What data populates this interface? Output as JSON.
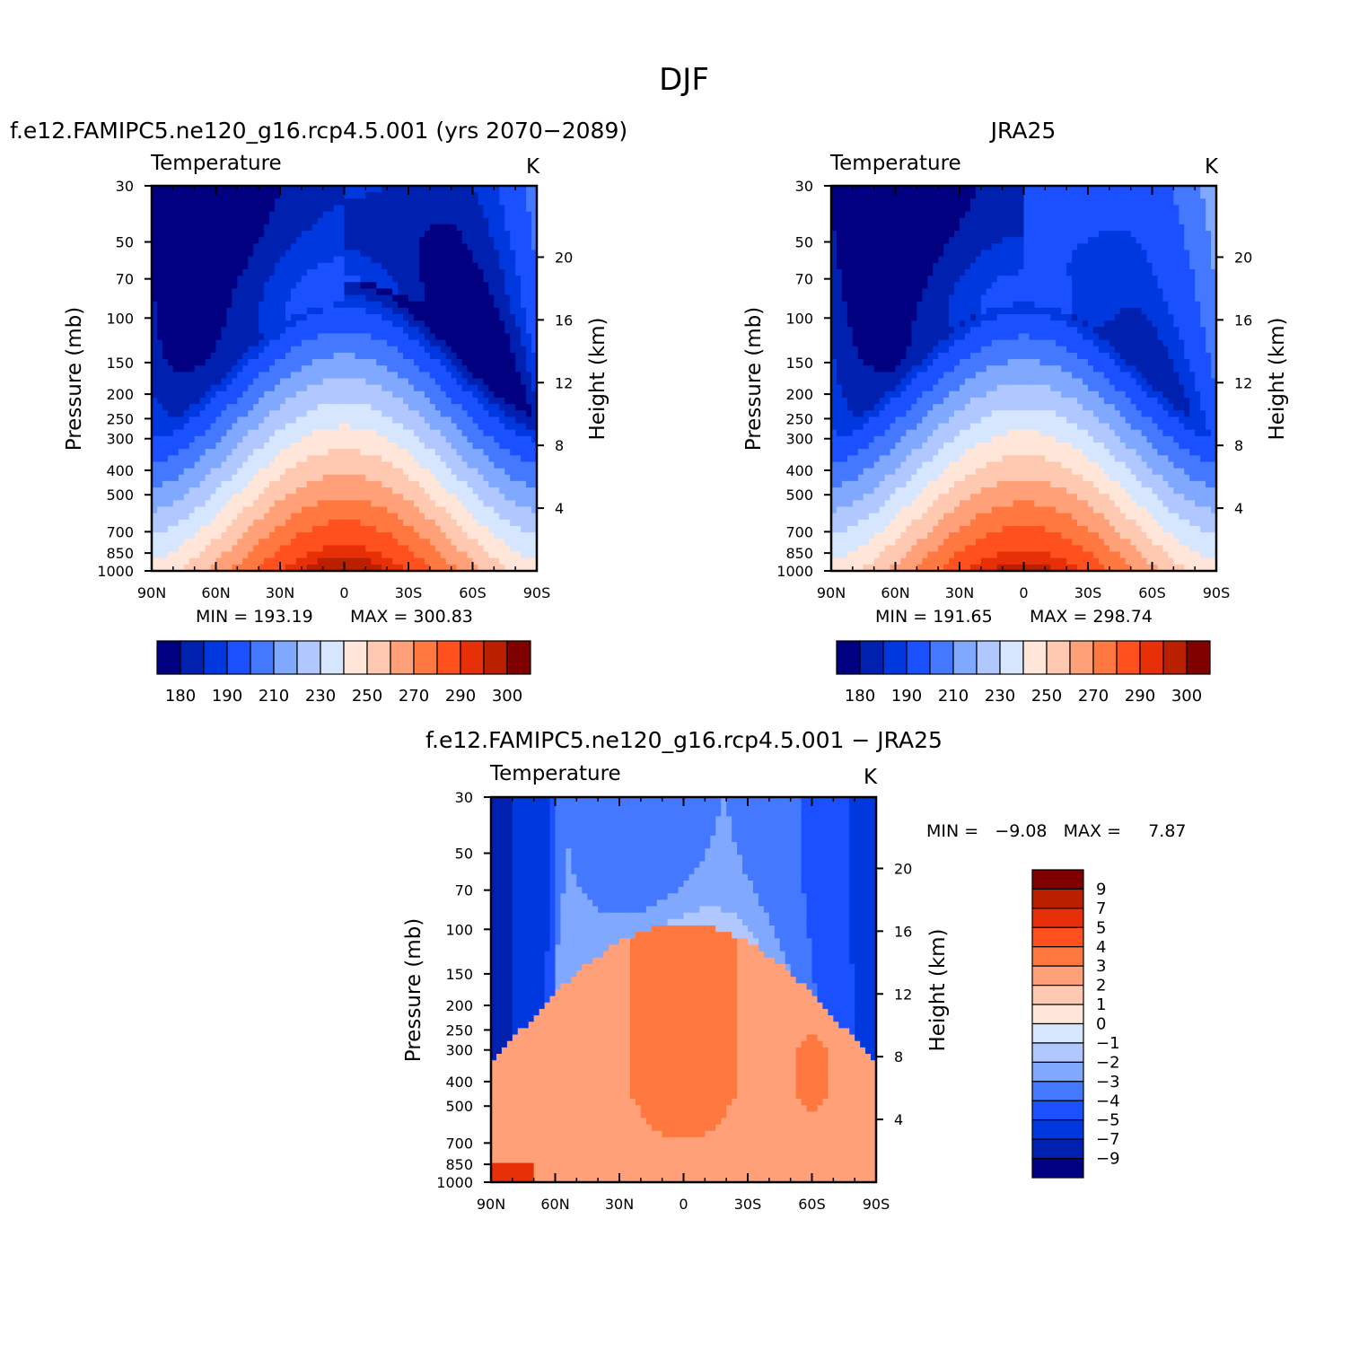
{
  "figure_title": "DJF",
  "colors": {
    "abs_levels": [
      "#000080",
      "#0020b0",
      "#0038e0",
      "#1a50ff",
      "#4478ff",
      "#80a8ff",
      "#b0c8ff",
      "#d6e6ff",
      "#ffe6d8",
      "#ffc8b0",
      "#ffa078",
      "#ff7840",
      "#ff501e",
      "#e83008",
      "#b82000",
      "#800000"
    ],
    "diff_levels": [
      "#000080",
      "#0020b0",
      "#0038e0",
      "#1a50ff",
      "#4478ff",
      "#80a8ff",
      "#b0c8ff",
      "#d6e6ff",
      "#ffe6d8",
      "#ffc8b0",
      "#ffa078",
      "#ff7840",
      "#ff501e",
      "#e83008",
      "#b82000",
      "#800000"
    ]
  },
  "chart_data": [
    {
      "type": "heatmap",
      "title": "f.e12.FAMIPC5.ne120_g16.rcp4.5.001 (yrs 2070−2089)",
      "variable": "Temperature",
      "units": "K",
      "ylabel": "Pressure (mb)",
      "y2label": "Height (km)",
      "x_ticks": [
        "90N",
        "60N",
        "30N",
        "0",
        "30S",
        "60S",
        "90S"
      ],
      "y_ticks": [
        "30",
        "50",
        "70",
        "100",
        "150",
        "200",
        "250",
        "300",
        "400",
        "500",
        "700",
        "850",
        "1000"
      ],
      "y2_ticks": [
        "20",
        "16",
        "12",
        "8",
        "4"
      ],
      "ylim": [
        1000,
        30
      ],
      "y_scale": "log",
      "min_text": "MIN = 193.19",
      "max_text": "MAX = 300.83",
      "colorbar_ticks": [
        "180",
        "190",
        "210",
        "230",
        "250",
        "270",
        "290",
        "300"
      ],
      "field": {
        "model": "abs",
        "tropTk": 195,
        "surfTk": 300.8,
        "poleCorr": 6,
        "shTrop": 1.5
      }
    },
    {
      "type": "heatmap",
      "title": "JRA25",
      "variable": "Temperature",
      "units": "K",
      "ylabel": "Pressure (mb)",
      "y2label": "Height (km)",
      "x_ticks": [
        "90N",
        "60N",
        "30N",
        "0",
        "30S",
        "60S",
        "90S"
      ],
      "y_ticks": [
        "30",
        "50",
        "70",
        "100",
        "150",
        "200",
        "250",
        "300",
        "400",
        "500",
        "700",
        "850",
        "1000"
      ],
      "y2_ticks": [
        "20",
        "16",
        "12",
        "8",
        "4"
      ],
      "ylim": [
        1000,
        30
      ],
      "y_scale": "log",
      "min_text": "MIN = 191.65",
      "max_text": "MAX = 298.74",
      "colorbar_ticks": [
        "180",
        "190",
        "210",
        "230",
        "250",
        "270",
        "290",
        "300"
      ],
      "field": {
        "model": "abs",
        "tropTk": 193,
        "surfTk": 298.7,
        "poleCorr": 3,
        "shTrop": 0
      }
    },
    {
      "type": "heatmap",
      "title": "f.e12.FAMIPC5.ne120_g16.rcp4.5.001 − JRA25",
      "variable": "Temperature",
      "units": "K",
      "ylabel": "Pressure (mb)",
      "y2label": "Height (km)",
      "x_ticks": [
        "90N",
        "60N",
        "30N",
        "0",
        "30S",
        "60S",
        "90S"
      ],
      "y_ticks": [
        "30",
        "50",
        "70",
        "100",
        "150",
        "200",
        "250",
        "300",
        "400",
        "500",
        "700",
        "850",
        "1000"
      ],
      "y2_ticks": [
        "20",
        "16",
        "12",
        "8",
        "4"
      ],
      "ylim": [
        1000,
        30
      ],
      "y_scale": "log",
      "min_text": "MIN =   −9.08   MAX =     7.87",
      "colorbar_ticks": [
        "9",
        "7",
        "5",
        "4",
        "3",
        "2",
        "1",
        "0",
        "−1",
        "−2",
        "−3",
        "−4",
        "−5",
        "−7",
        "−9"
      ],
      "field": {
        "model": "diff"
      }
    }
  ]
}
